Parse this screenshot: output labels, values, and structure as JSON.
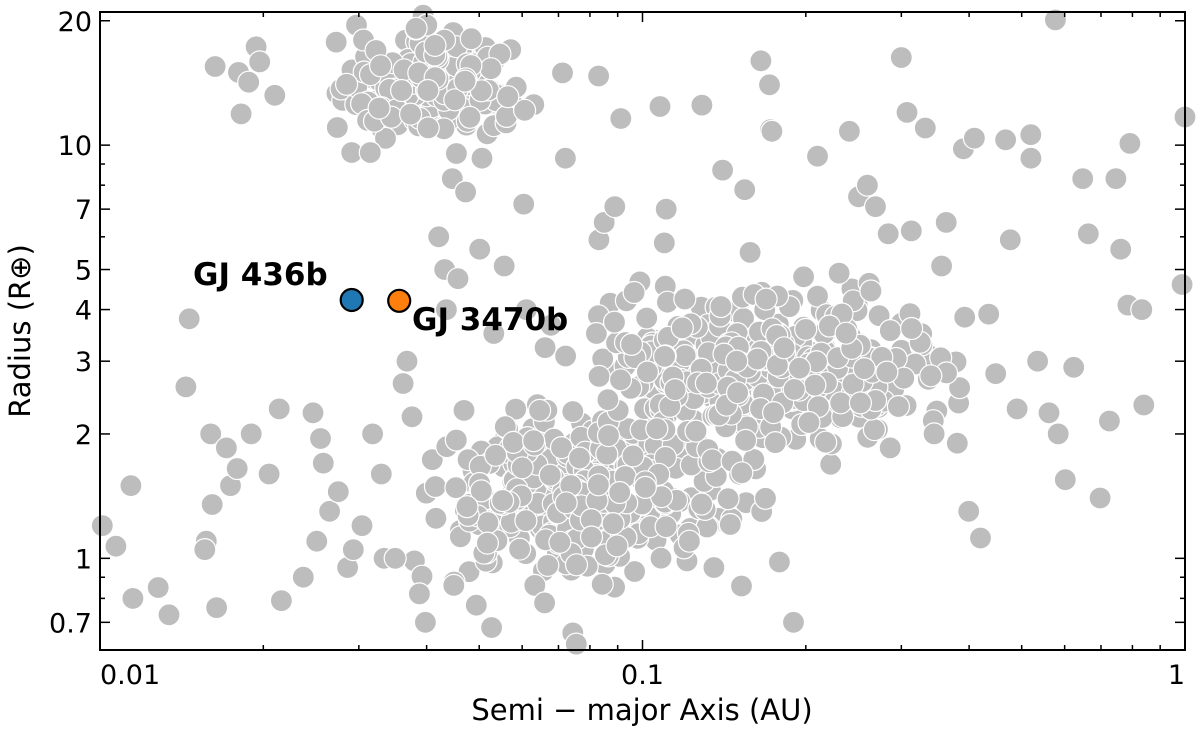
{
  "chart_data": {
    "type": "scatter",
    "title": "",
    "xlabel": "Semi − major Axis (AU)",
    "ylabel": "Radius (R⊕)",
    "xscale": "log",
    "yscale": "log",
    "xlim": [
      0.01,
      1
    ],
    "ylim": [
      0.6,
      21
    ],
    "grid": false,
    "x_ticks": [
      {
        "value": 0.01,
        "label": "0.01"
      },
      {
        "value": 0.1,
        "label": "0.1"
      },
      {
        "value": 1,
        "label": "1"
      }
    ],
    "y_ticks": [
      {
        "value": 0.7,
        "label": "0.7"
      },
      {
        "value": 1,
        "label": "1"
      },
      {
        "value": 2,
        "label": "2"
      },
      {
        "value": 3,
        "label": "3"
      },
      {
        "value": 4,
        "label": "4"
      },
      {
        "value": 5,
        "label": "5"
      },
      {
        "value": 7,
        "label": "7"
      },
      {
        "value": 10,
        "label": "10"
      },
      {
        "value": 20,
        "label": "20"
      }
    ],
    "colors": {
      "population": "#bdbdbd",
      "population_edge": "#ffffff",
      "GJ 436b": "#1f77b4",
      "GJ 3470b": "#ff7f0e"
    },
    "population_dense_regions": [
      {
        "a_range": [
          0.025,
          0.07
        ],
        "r_range": [
          9.5,
          20
        ],
        "count": 200
      },
      {
        "a_range": [
          0.035,
          0.18
        ],
        "r_range": [
          0.8,
          2.6
        ],
        "count": 380
      },
      {
        "a_range": [
          0.06,
          0.45
        ],
        "r_range": [
          1.7,
          4.8
        ],
        "count": 420
      }
    ],
    "population_points": [
      [
        0.0101,
        1.2
      ],
      [
        0.0107,
        1.07
      ],
      [
        0.0115,
        0.8
      ],
      [
        0.0114,
        1.5
      ],
      [
        0.0128,
        0.85
      ],
      [
        0.0134,
        0.73
      ],
      [
        0.0146,
        3.8
      ],
      [
        0.0144,
        2.6
      ],
      [
        0.0157,
        1.1
      ],
      [
        0.016,
        2.0
      ],
      [
        0.0156,
        1.05
      ],
      [
        0.0161,
        1.35
      ],
      [
        0.0163,
        15.5
      ],
      [
        0.0164,
        0.76
      ],
      [
        0.0171,
        1.85
      ],
      [
        0.0174,
        1.5
      ],
      [
        0.018,
        15.0
      ],
      [
        0.0179,
        1.65
      ],
      [
        0.0182,
        11.9
      ],
      [
        0.019,
        2.0
      ],
      [
        0.0188,
        14.2
      ],
      [
        0.0194,
        17.3
      ],
      [
        0.0197,
        15.9
      ],
      [
        0.0205,
        1.6
      ],
      [
        0.021,
        13.2
      ],
      [
        0.0214,
        2.3
      ],
      [
        0.0216,
        0.79
      ],
      [
        0.0237,
        0.9
      ],
      [
        0.0247,
        2.25
      ],
      [
        0.0251,
        1.1
      ],
      [
        0.0255,
        1.95
      ],
      [
        0.0258,
        1.7
      ],
      [
        0.0265,
        1.3
      ],
      [
        0.0275,
        1.45
      ],
      [
        0.0286,
        0.95
      ],
      [
        0.0291,
        9.6
      ],
      [
        0.0293,
        1.05
      ],
      [
        0.0304,
        1.2
      ],
      [
        0.0315,
        9.6
      ],
      [
        0.0318,
        2.0
      ],
      [
        0.0334,
        1.0
      ],
      [
        0.033,
        1.6
      ],
      [
        0.035,
        1.0
      ],
      [
        0.0362,
        2.65
      ],
      [
        0.0368,
        3.0
      ],
      [
        0.0376,
        2.2
      ],
      [
        0.0388,
        0.82
      ],
      [
        0.0398,
        0.7
      ],
      [
        0.0416,
        1.25
      ],
      [
        0.0421,
        6.0
      ],
      [
        0.0432,
        5.0
      ],
      [
        0.0435,
        4.0
      ],
      [
        0.0446,
        8.3
      ],
      [
        0.0449,
        0.86
      ],
      [
        0.0457,
        4.75
      ],
      [
        0.0472,
        7.7
      ],
      [
        0.0494,
        0.77
      ],
      [
        0.0501,
        5.6
      ],
      [
        0.0506,
        9.3
      ],
      [
        0.0527,
        0.68
      ],
      [
        0.0532,
        3.5
      ],
      [
        0.0556,
        5.1
      ],
      [
        0.0604,
        7.2
      ],
      [
        0.0611,
        4.0
      ],
      [
        0.0633,
        0.86
      ],
      [
        0.066,
        0.78
      ],
      [
        0.0721,
        9.3
      ],
      [
        0.0744,
        0.66
      ],
      [
        0.0755,
        0.62
      ],
      [
        0.0831,
        5.9
      ],
      [
        0.083,
        14.7
      ],
      [
        0.085,
        6.5
      ],
      [
        0.0889,
        7.1
      ],
      [
        0.0912,
        11.6
      ],
      [
        0.0934,
        4.2
      ],
      [
        0.0965,
        4.4
      ],
      [
        0.1077,
        12.4
      ],
      [
        0.1106,
        7.0
      ],
      [
        0.1097,
        5.8
      ],
      [
        0.122,
        1.1
      ],
      [
        0.1287,
        12.5
      ],
      [
        0.1405,
        8.7
      ],
      [
        0.1543,
        7.8
      ],
      [
        0.1579,
        5.5
      ],
      [
        0.1653,
        16.0
      ],
      [
        0.1714,
        14.0
      ],
      [
        0.1722,
        10.9
      ],
      [
        0.1732,
        10.8
      ],
      [
        0.1788,
        0.98
      ],
      [
        0.1898,
        0.7
      ],
      [
        0.1981,
        4.8
      ],
      [
        0.2102,
        9.4
      ],
      [
        0.2304,
        4.9
      ],
      [
        0.2406,
        10.8
      ],
      [
        0.2501,
        7.5
      ],
      [
        0.2597,
        8.0
      ],
      [
        0.2688,
        7.1
      ],
      [
        0.2837,
        6.1
      ],
      [
        0.2861,
        1.85
      ],
      [
        0.3,
        16.3
      ],
      [
        0.3073,
        12.0
      ],
      [
        0.3129,
        6.2
      ],
      [
        0.3134,
        3.6
      ],
      [
        0.3321,
        11.0
      ],
      [
        0.3448,
        2.0
      ],
      [
        0.3559,
        5.1
      ],
      [
        0.3629,
        6.5
      ],
      [
        0.3804,
        1.9
      ],
      [
        0.3904,
        9.8
      ],
      [
        0.3993,
        1.3
      ],
      [
        0.4091,
        10.4
      ],
      [
        0.4198,
        1.12
      ],
      [
        0.4346,
        3.9
      ],
      [
        0.4478,
        2.8
      ],
      [
        0.467,
        10.3
      ],
      [
        0.4763,
        5.9
      ],
      [
        0.4904,
        2.3
      ],
      [
        0.5198,
        10.6
      ],
      [
        0.52,
        9.3
      ],
      [
        0.5349,
        3.0
      ],
      [
        0.5615,
        2.25
      ],
      [
        0.577,
        20.1
      ],
      [
        0.5838,
        2.0
      ],
      [
        0.6017,
        1.55
      ],
      [
        0.6234,
        2.9
      ],
      [
        0.6478,
        8.3
      ],
      [
        0.6633,
        6.1
      ],
      [
        0.6975,
        1.4
      ],
      [
        0.7256,
        2.15
      ],
      [
        0.7459,
        8.3
      ],
      [
        0.7612,
        5.6
      ],
      [
        0.7915,
        10.1
      ],
      [
        0.7848,
        4.1
      ],
      [
        0.8324,
        4.0
      ],
      [
        0.8395,
        2.35
      ],
      [
        0.9878,
        4.6
      ],
      [
        1.0,
        11.7
      ]
    ],
    "highlighted": [
      {
        "name": "GJ 436b",
        "label": "GJ 436b",
        "a": 0.0291,
        "r": 4.22
      },
      {
        "name": "GJ 3470b",
        "label": "GJ 3470b",
        "a": 0.0356,
        "r": 4.2
      }
    ]
  }
}
